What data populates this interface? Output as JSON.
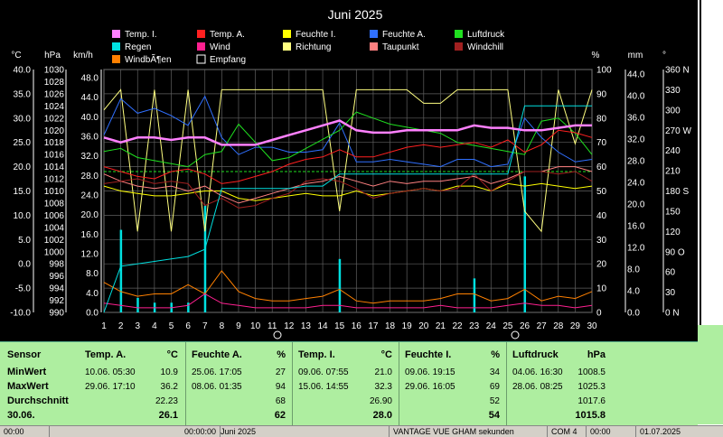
{
  "chart_data": {
    "type": "line",
    "title": "Juni 2025",
    "x": [
      1,
      2,
      3,
      4,
      5,
      6,
      7,
      8,
      9,
      10,
      11,
      12,
      13,
      14,
      15,
      16,
      17,
      18,
      19,
      20,
      21,
      22,
      23,
      24,
      25,
      26,
      27,
      28,
      29,
      30
    ],
    "axes_left": {
      "temp": {
        "unit": "°C",
        "ticks": [
          "40.0",
          "35.0",
          "30.0",
          "25.0",
          "20.0",
          "15.0",
          "10.0",
          "5.0",
          "0.0",
          "-5.0",
          "-10.0"
        ]
      },
      "pressure": {
        "unit": "hPa",
        "ticks": [
          "1030",
          "1028",
          "1026",
          "1024",
          "1022",
          "1020",
          "1018",
          "1016",
          "1014",
          "1012",
          "1010",
          "1008",
          "1006",
          "1004",
          "1002",
          "1000",
          "998",
          "996",
          "994",
          "992",
          "990"
        ]
      },
      "wind": {
        "unit": "km/h",
        "ticks": [
          "48.0",
          "44.0",
          "40.0",
          "36.0",
          "32.0",
          "28.0",
          "24.0",
          "20.0",
          "16.0",
          "12.0",
          "8.0",
          "4.0",
          "0.0"
        ]
      }
    },
    "axes_right": {
      "percent": {
        "unit": "%",
        "ticks": [
          "100",
          "90",
          "80",
          "70",
          "60",
          "50",
          "40",
          "30",
          "20",
          "10",
          "0"
        ]
      },
      "rain": {
        "unit": "mm",
        "ticks": [
          "44.0",
          "40.0",
          "36.0",
          "32.0",
          "28.0",
          "24.0",
          "20.0",
          "16.0",
          "12.0",
          "8.0",
          "4.0",
          "0.0"
        ]
      },
      "direction": {
        "unit": "°",
        "ticks": [
          "360 N",
          "330",
          "300",
          "270 W",
          "240",
          "210",
          "180 S",
          "150",
          "120",
          "90 O",
          "60",
          "30",
          "0 N"
        ]
      }
    },
    "legend": [
      {
        "name": "Temp. I.",
        "color": "#ff80ff"
      },
      {
        "name": "Temp. A.",
        "color": "#ff2020"
      },
      {
        "name": "Feuchte I.",
        "color": "#ffff00"
      },
      {
        "name": "Feuchte A.",
        "color": "#3070ff"
      },
      {
        "name": "Luftdruck",
        "color": "#20e020"
      },
      {
        "name": "Regen",
        "color": "#00e0e0"
      },
      {
        "name": "Wind",
        "color": "#ff2090"
      },
      {
        "name": "Richtung",
        "color": "#ffff80"
      },
      {
        "name": "Taupunkt",
        "color": "#ff8080"
      },
      {
        "name": "Windchill",
        "color": "#a02020"
      },
      {
        "name": "WindbÃ¶en",
        "color": "#ff8000"
      },
      {
        "name": "Empfang",
        "color": "#ffffff"
      }
    ],
    "series": [
      {
        "name": "Temp. I.",
        "axis": "temp",
        "values": [
          26.0,
          25.0,
          26.0,
          26.0,
          25.5,
          26.0,
          26.0,
          24.5,
          24.5,
          24.5,
          25.5,
          26.5,
          27.5,
          28.5,
          29.5,
          27.5,
          27.0,
          27.0,
          27.5,
          27.5,
          27.5,
          27.5,
          28.5,
          28.0,
          28.0,
          27.5,
          27.5,
          28.0,
          28.5,
          28.5
        ]
      },
      {
        "name": "Temp. A.",
        "axis": "temp",
        "values": [
          20.0,
          19.0,
          18.0,
          17.5,
          19.0,
          19.5,
          18.5,
          16.5,
          17.0,
          18.0,
          19.0,
          20.5,
          21.5,
          22.0,
          23.5,
          22.0,
          22.0,
          23.0,
          24.0,
          24.5,
          24.0,
          24.5,
          25.0,
          24.0,
          25.5,
          23.0,
          24.5,
          27.5,
          27.0,
          26.0
        ]
      },
      {
        "name": "Feuchte I.",
        "axis": "percent",
        "values": [
          52,
          50,
          49,
          48,
          48,
          49,
          50,
          50,
          47,
          46,
          47,
          48,
          49,
          48,
          48,
          50,
          48,
          49,
          50,
          51,
          50,
          52,
          52,
          50,
          53,
          52,
          53,
          52,
          51,
          52
        ]
      },
      {
        "name": "Feuchte A.",
        "axis": "percent",
        "values": [
          73,
          88,
          82,
          84,
          81,
          77,
          89,
          72,
          65,
          68,
          68,
          66,
          66,
          67,
          78,
          62,
          62,
          63,
          62,
          61,
          60,
          63,
          63,
          60,
          61,
          80,
          72,
          66,
          62,
          63
        ]
      },
      {
        "name": "Luftdruck",
        "axis": "pressure",
        "values": [
          1016.5,
          1017.0,
          1015.5,
          1015.0,
          1014.5,
          1014.0,
          1016.0,
          1016.5,
          1021.0,
          1018.0,
          1015.0,
          1015.5,
          1017.0,
          1018.5,
          1020.0,
          1023.0,
          1022.0,
          1021.0,
          1020.5,
          1020.0,
          1019.5,
          1018.0,
          1017.5,
          1017.0,
          1016.5,
          1016.0,
          1021.5,
          1022.0,
          1019.5,
          1016.0
        ]
      },
      {
        "name": "Regen",
        "axis": "rain",
        "values": [
          0,
          9.5,
          10.0,
          10.5,
          11.0,
          11.5,
          13.0,
          25.5,
          25.5,
          25.5,
          25.5,
          25.5,
          26.0,
          26.0,
          28.5,
          28.5,
          28.5,
          28.5,
          28.5,
          28.5,
          28.5,
          28.5,
          28.5,
          28.5,
          28.5,
          42.5,
          42.5,
          42.5,
          42.5,
          42.5
        ]
      },
      {
        "name": "Wind",
        "axis": "wind",
        "values": [
          2.0,
          1.5,
          1.0,
          1.0,
          1.0,
          1.5,
          4.0,
          2.0,
          1.5,
          1.0,
          1.0,
          1.0,
          1.0,
          1.5,
          1.5,
          1.0,
          1.0,
          1.0,
          1.0,
          1.0,
          1.5,
          1.0,
          1.0,
          1.0,
          1.5,
          2.0,
          1.5,
          1.5,
          1.0,
          1.5
        ]
      },
      {
        "name": "Richtung",
        "axis": "direction",
        "values": [
          300,
          330,
          120,
          330,
          120,
          330,
          120,
          330,
          330,
          330,
          330,
          330,
          330,
          330,
          150,
          330,
          330,
          330,
          330,
          310,
          310,
          330,
          330,
          330,
          330,
          150,
          120,
          330,
          250,
          330
        ]
      },
      {
        "name": "Taupunkt",
        "axis": "temp",
        "values": [
          18.5,
          17.0,
          16.0,
          15.5,
          16.0,
          15.0,
          16.0,
          14.0,
          12.5,
          13.5,
          14.5,
          15.5,
          16.5,
          17.0,
          18.0,
          17.0,
          16.0,
          17.0,
          16.5,
          17.0,
          17.0,
          17.5,
          18.0,
          16.5,
          17.5,
          19.0,
          19.0,
          20.0,
          20.0,
          19.0
        ]
      },
      {
        "name": "Windchill",
        "axis": "temp",
        "values": [
          16.5,
          17.0,
          17.5,
          16.5,
          17.0,
          16.5,
          12.0,
          13.5,
          11.5,
          12.0,
          13.5,
          14.5,
          17.0,
          17.5,
          17.0,
          15.5,
          13.5,
          14.5,
          15.0,
          15.5,
          15.0,
          15.5,
          18.5,
          15.0,
          17.0,
          19.0,
          19.0,
          18.5,
          19.0,
          17.0
        ]
      },
      {
        "name": "WindbÃ¶en",
        "axis": "wind",
        "values": [
          6.5,
          4.5,
          3.5,
          4.0,
          4.0,
          6.0,
          4.0,
          9.0,
          4.5,
          3.0,
          2.5,
          2.5,
          3.0,
          3.5,
          5.0,
          2.5,
          2.0,
          2.5,
          2.5,
          2.5,
          3.0,
          4.0,
          4.0,
          2.5,
          3.0,
          5.0,
          2.5,
          3.5,
          3.0,
          4.5
        ]
      }
    ],
    "rain_bars": [
      0,
      17,
      3,
      2,
      2,
      2,
      22,
      0,
      0,
      0,
      0,
      0,
      0,
      0,
      11,
      0,
      0,
      0,
      0,
      0,
      0,
      0,
      7,
      0,
      0,
      28,
      0,
      0,
      0,
      0
    ],
    "reference_line": {
      "axis": "temp",
      "value": 19.0,
      "color": "#20e020"
    },
    "grid": true
  },
  "summary": {
    "labels": {
      "sensor": "Sensor",
      "min": "MinWert",
      "max": "MaxWert",
      "avg": "Durchschnitt",
      "date": "30.06."
    },
    "columns": [
      {
        "title": "Temp. A.",
        "unit": "°C",
        "min_time": "10.06.  05:30",
        "min": "10.9",
        "max_time": "29.06.  17:10",
        "max": "36.2",
        "avg": "22.23",
        "current": "26.1"
      },
      {
        "title": "Feuchte A.",
        "unit": "%",
        "min_time": "25.06.  17:05",
        "min": "27",
        "max_time": "08.06.  01:35",
        "max": "94",
        "avg": "68",
        "current": "62"
      },
      {
        "title": "Temp. I.",
        "unit": "°C",
        "min_time": "09.06.  07:55",
        "min": "21.0",
        "max_time": "15.06.  14:55",
        "max": "32.3",
        "avg": "26.90",
        "current": "28.0"
      },
      {
        "title": "Feuchte I.",
        "unit": "%",
        "min_time": "09.06.  19:15",
        "min": "34",
        "max_time": "29.06.  16:05",
        "max": "69",
        "avg": "52",
        "current": "54"
      },
      {
        "title": "Luftdruck",
        "unit": "hPa",
        "min_time": "04.06.  16:30",
        "min": "1008.5",
        "max_time": "28.06.  08:25",
        "max": "1025.3",
        "avg": "1017.6",
        "current": "1015.8"
      }
    ]
  },
  "statusbar": [
    "00:00",
    "00:00:00",
    "Juni 2025",
    "VANTAGE VUE GHAM sekunden",
    "COM 4",
    "00:00",
    "01.07.2025"
  ]
}
